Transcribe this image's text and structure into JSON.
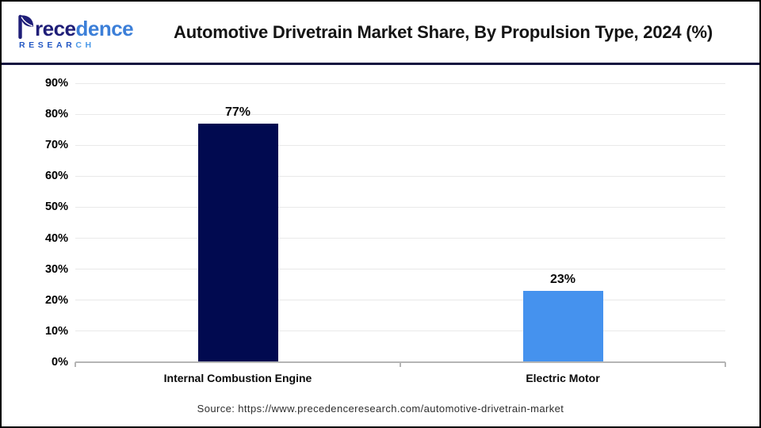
{
  "brand": {
    "full_name": "Precedence Research",
    "word_primary": "Precedence",
    "word_primary_rest_a": "rece",
    "word_primary_rest_b": "dence",
    "word_secondary_a": "RESEAR",
    "word_secondary_b": "CH"
  },
  "header": {
    "title": "Automotive Drivetrain Market Share, By Propulsion Type, 2024 (%)"
  },
  "chart_data": {
    "type": "bar",
    "title": "Automotive Drivetrain Market Share, By Propulsion Type, 2024 (%)",
    "categories": [
      "Internal Combustion Engine",
      "Electric Motor"
    ],
    "values": [
      77,
      23
    ],
    "value_labels": [
      "77%",
      "23%"
    ],
    "bar_colors": [
      "#010a50",
      "#4592ee"
    ],
    "xlabel": "",
    "ylabel": "",
    "ylim": [
      0,
      90
    ],
    "yticks": [
      0,
      10,
      20,
      30,
      40,
      50,
      60,
      70,
      80,
      90
    ],
    "ytick_labels": [
      "0%",
      "10%",
      "20%",
      "30%",
      "40%",
      "50%",
      "60%",
      "70%",
      "80%",
      "90%"
    ],
    "grid": "horizontal",
    "legend": false
  },
  "footer": {
    "source": "Source: https://www.precedenceresearch.com/automotive-drivetrain-market"
  },
  "colors": {
    "bar_ice": "#010a50",
    "bar_ev": "#4592ee",
    "gridline": "#e9e9e9",
    "axis": "#b5b5b5",
    "outer_border": "#000000",
    "header_rule": "#12123f",
    "brand_navy": "#1f1e78",
    "brand_blue": "#3c7fd8",
    "research_blue": "#2257c4"
  }
}
